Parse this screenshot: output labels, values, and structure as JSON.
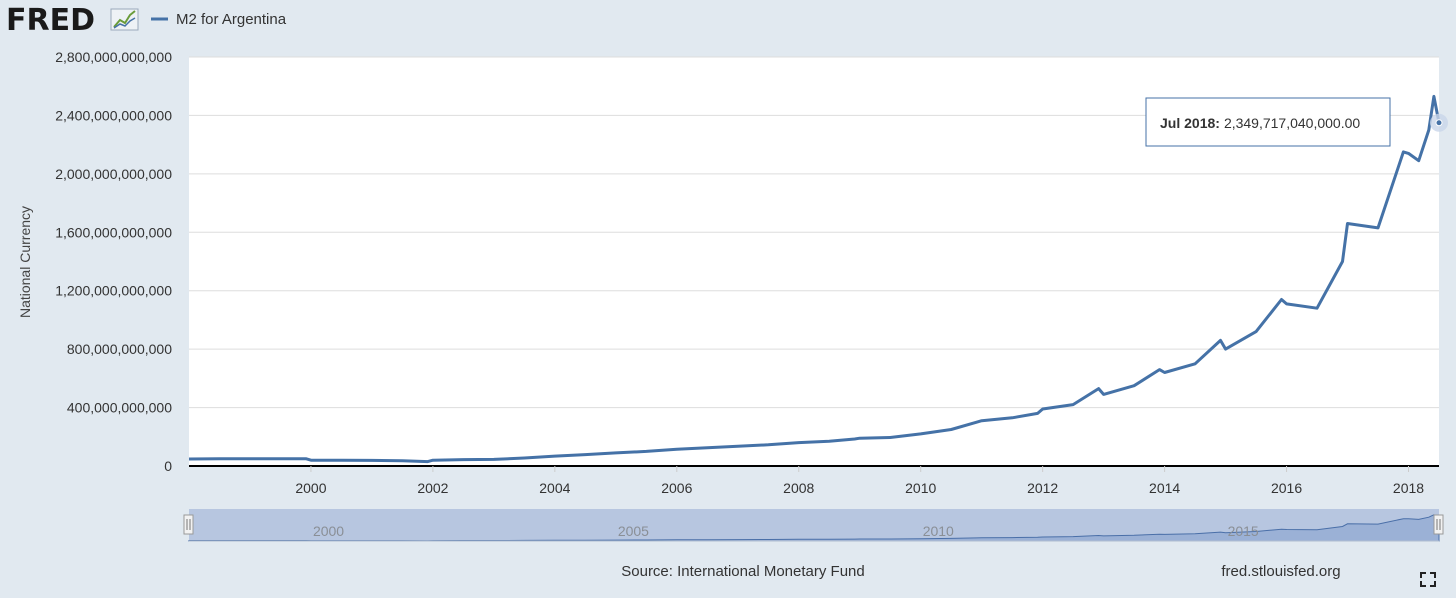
{
  "header": {
    "logo_text": "FRED",
    "legend_label": "M2 for Argentina"
  },
  "colors": {
    "background": "#e1e9f0",
    "plot_background": "#ffffff",
    "series": "#4572a7",
    "navigator_fill": "#b7c6e0",
    "gridline": "#dddddd",
    "tooltip_border": "#4572a7"
  },
  "chart_data": {
    "type": "line",
    "ylabel": "National Currency",
    "xlabel": "",
    "ylim": [
      0,
      2800000000000
    ],
    "yticks": [
      0,
      400000000000,
      800000000000,
      1200000000000,
      1600000000000,
      2000000000000,
      2400000000000,
      2800000000000
    ],
    "ytick_labels": [
      "0",
      "400,000,000,000",
      "800,000,000,000",
      "1,200,000,000,000",
      "1,600,000,000,000",
      "2,000,000,000,000",
      "2,400,000,000,000",
      "2,800,000,000,000"
    ],
    "xlim": [
      "1998-01",
      "2018-07"
    ],
    "xtick_labels": [
      "2000",
      "2002",
      "2004",
      "2006",
      "2008",
      "2010",
      "2012",
      "2014",
      "2016",
      "2018"
    ],
    "navigator_labels": [
      "2000",
      "2005",
      "2010",
      "2015"
    ],
    "grid": true,
    "series": [
      {
        "values": [
          [
            "1998-01",
            48000000000
          ],
          [
            "1998-07",
            50000000000
          ],
          [
            "1999-01",
            49000000000
          ],
          [
            "1999-07",
            50000000000
          ],
          [
            "1999-12",
            50000000000
          ],
          [
            "2000-01",
            40000000000
          ],
          [
            "2000-07",
            40000000000
          ],
          [
            "2001-01",
            38000000000
          ],
          [
            "2001-07",
            36000000000
          ],
          [
            "2001-12",
            30000000000
          ],
          [
            "2002-01",
            40000000000
          ],
          [
            "2002-07",
            44000000000
          ],
          [
            "2003-01",
            45000000000
          ],
          [
            "2003-07",
            55000000000
          ],
          [
            "2004-01",
            68000000000
          ],
          [
            "2004-07",
            78000000000
          ],
          [
            "2005-01",
            90000000000
          ],
          [
            "2005-07",
            100000000000
          ],
          [
            "2006-01",
            115000000000
          ],
          [
            "2006-07",
            125000000000
          ],
          [
            "2007-01",
            135000000000
          ],
          [
            "2007-07",
            145000000000
          ],
          [
            "2008-01",
            160000000000
          ],
          [
            "2008-07",
            170000000000
          ],
          [
            "2008-12",
            185000000000
          ],
          [
            "2009-01",
            190000000000
          ],
          [
            "2009-07",
            195000000000
          ],
          [
            "2010-01",
            220000000000
          ],
          [
            "2010-07",
            250000000000
          ],
          [
            "2010-12",
            300000000000
          ],
          [
            "2011-01",
            310000000000
          ],
          [
            "2011-07",
            330000000000
          ],
          [
            "2011-12",
            360000000000
          ],
          [
            "2012-01",
            390000000000
          ],
          [
            "2012-07",
            420000000000
          ],
          [
            "2012-12",
            530000000000
          ],
          [
            "2013-01",
            490000000000
          ],
          [
            "2013-07",
            550000000000
          ],
          [
            "2013-12",
            660000000000
          ],
          [
            "2014-01",
            640000000000
          ],
          [
            "2014-07",
            700000000000
          ],
          [
            "2014-12",
            860000000000
          ],
          [
            "2015-01",
            800000000000
          ],
          [
            "2015-07",
            920000000000
          ],
          [
            "2015-12",
            1140000000000
          ],
          [
            "2016-01",
            1110000000000
          ],
          [
            "2016-07",
            1080000000000
          ],
          [
            "2016-12",
            1400000000000
          ],
          [
            "2017-01",
            1660000000000
          ],
          [
            "2017-07",
            1630000000000
          ],
          [
            "2017-12",
            2150000000000
          ],
          [
            "2018-01",
            2140000000000
          ],
          [
            "2018-03",
            2090000000000
          ],
          [
            "2018-05",
            2300000000000
          ],
          [
            "2018-06",
            2530000000000
          ],
          [
            "2018-07",
            2349717040000
          ]
        ]
      }
    ],
    "tooltip": {
      "date": "Jul 2018:",
      "value": "2,349,717,040,000.00"
    }
  },
  "footer": {
    "source": "Source: International Monetary Fund",
    "site": "fred.stlouisfed.org"
  },
  "icons": {
    "fullscreen": "fullscreen-icon",
    "logo_graph": "fred-graph-icon"
  }
}
